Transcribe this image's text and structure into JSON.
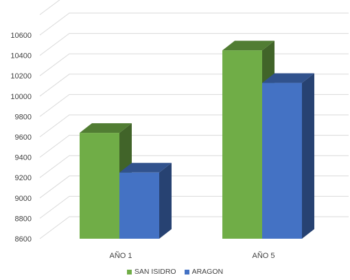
{
  "chart_data": {
    "type": "bar",
    "categories": [
      "AÑO 1",
      "AÑO 5"
    ],
    "series": [
      {
        "name": "SAN ISIDRO",
        "values": [
          9640,
          10450
        ],
        "color": "#70AD47"
      },
      {
        "name": "ARAGON",
        "values": [
          9250,
          10130
        ],
        "color": "#4472C4"
      }
    ],
    "y_ticks": [
      "8600",
      "8800",
      "9000",
      "9200",
      "9400",
      "9600",
      "9800",
      "10000",
      "10200",
      "10400",
      "10600"
    ],
    "ylim": [
      8600,
      10800
    ],
    "grid": true,
    "legend_position": "bottom",
    "style": "3d-clustered-column"
  }
}
